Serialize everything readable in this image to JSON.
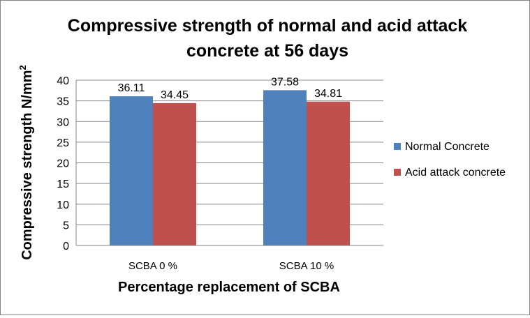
{
  "chart_data": {
    "type": "bar",
    "title_line1": "Compressive strength of normal and acid attack",
    "title_line2": "concrete at 56 days",
    "xlabel": "Percentage replacement of SCBA",
    "ylabel_main": "Compressive strength N/mm",
    "ylabel_sup": "2",
    "categories": [
      "SCBA 0 %",
      "SCBA 10 %"
    ],
    "series": [
      {
        "name": "Normal Concrete",
        "color": "#4F81BD",
        "values": [
          36.11,
          37.58
        ],
        "labels": [
          "36.11",
          "37.58"
        ]
      },
      {
        "name": "Acid attack concrete",
        "color": "#C0504D",
        "values": [
          34.45,
          34.81
        ],
        "labels": [
          "34.45",
          "34.81"
        ]
      }
    ],
    "ylim": [
      0,
      40
    ],
    "yticks": [
      "0",
      "5",
      "10",
      "15",
      "20",
      "25",
      "30",
      "35",
      "40"
    ],
    "grid": true,
    "legend_position": "right"
  }
}
